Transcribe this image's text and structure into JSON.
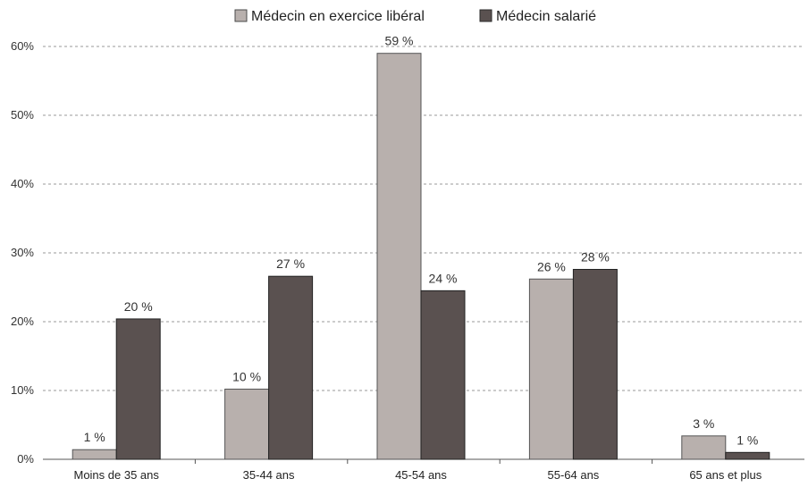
{
  "chart_data": {
    "type": "bar",
    "categories": [
      "Moins de 35 ans",
      "35-44 ans",
      "45-54 ans",
      "55-64 ans",
      "65 ans et plus"
    ],
    "series": [
      {
        "name": "Médecin en exercice libéral",
        "color": "#b8b0ad",
        "values": [
          1.4,
          10.2,
          59,
          26.2,
          3.4
        ],
        "labels": [
          "1 %",
          "10 %",
          "59 %",
          "26 %",
          "3 %"
        ]
      },
      {
        "name": "Médecin salarié",
        "color": "#5a5150",
        "values": [
          20.4,
          26.6,
          24.5,
          27.6,
          1
        ],
        "labels": [
          "20 %",
          "27 %",
          "24 %",
          "28 %",
          "1 %"
        ]
      }
    ],
    "yticks": [
      "0%",
      "10%",
      "20%",
      "30%",
      "40%",
      "50%",
      "60%"
    ],
    "ylim": [
      0,
      60
    ],
    "grid": true,
    "legend_position": "top"
  }
}
